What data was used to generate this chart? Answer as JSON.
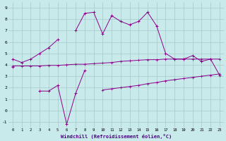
{
  "xlabel": "Windchill (Refroidissement éolien,°C)",
  "x": [
    0,
    1,
    2,
    3,
    4,
    5,
    6,
    7,
    8,
    9,
    10,
    11,
    12,
    13,
    14,
    15,
    16,
    17,
    18,
    19,
    20,
    21,
    22,
    23
  ],
  "line1_y": [
    4.5,
    4.2,
    4.5,
    5.0,
    5.5,
    6.2,
    null,
    7.0,
    8.5,
    8.6,
    6.7,
    8.3,
    7.8,
    7.5,
    7.8,
    8.6,
    7.4,
    5.0,
    4.5,
    4.5,
    4.8,
    4.3,
    4.5,
    3.1
  ],
  "line2_y": [
    3.8,
    null,
    null,
    1.7,
    1.7,
    2.2,
    -1.2,
    1.5,
    3.5,
    null,
    null,
    null,
    null,
    null,
    null,
    null,
    null,
    null,
    null,
    null,
    null,
    null,
    null,
    null
  ],
  "flat1_y": [
    3.9,
    3.9,
    3.9,
    3.9,
    3.95,
    3.95,
    4.0,
    4.05,
    4.05,
    4.1,
    4.15,
    4.2,
    4.3,
    4.35,
    4.4,
    4.45,
    4.45,
    4.5,
    4.5,
    4.5,
    4.5,
    4.5,
    4.5,
    4.5
  ],
  "flat2_y": [
    null,
    null,
    null,
    null,
    null,
    null,
    null,
    null,
    null,
    null,
    1.8,
    1.9,
    2.0,
    2.1,
    2.2,
    2.35,
    2.45,
    2.6,
    2.7,
    2.8,
    2.9,
    3.0,
    3.1,
    3.2
  ],
  "ylim": [
    -1.5,
    9.5
  ],
  "yticks": [
    -1,
    0,
    1,
    2,
    3,
    4,
    5,
    6,
    7,
    8,
    9
  ],
  "xlim": [
    -0.5,
    23.5
  ],
  "xticks": [
    0,
    1,
    2,
    3,
    4,
    5,
    6,
    7,
    8,
    9,
    10,
    11,
    12,
    13,
    14,
    15,
    16,
    17,
    18,
    19,
    20,
    21,
    22,
    23
  ],
  "line_color": "#8B008B",
  "bg_color": "#c8eaea",
  "grid_color": "#a8c8c8"
}
